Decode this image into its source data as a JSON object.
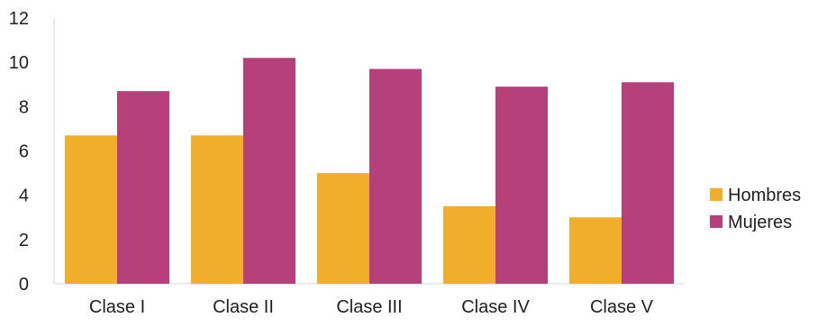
{
  "chart_data": {
    "type": "bar",
    "title": "",
    "xlabel": "",
    "ylabel": "",
    "categories": [
      "Clase I",
      "Clase II",
      "Clase III",
      "Clase IV",
      "Clase V"
    ],
    "series": [
      {
        "name": "Hombres",
        "color": "#F0AE2A",
        "values": [
          6.7,
          6.7,
          5.0,
          3.5,
          3.0
        ]
      },
      {
        "name": "Mujeres",
        "color": "#B5407A",
        "values": [
          8.7,
          10.2,
          9.7,
          8.9,
          9.1
        ]
      }
    ],
    "ylim": [
      0,
      12
    ],
    "yticks": [
      0,
      2,
      4,
      6,
      8,
      10,
      12
    ],
    "grid": false,
    "legend_position": "right",
    "axis_color": "#D9D9D9"
  }
}
